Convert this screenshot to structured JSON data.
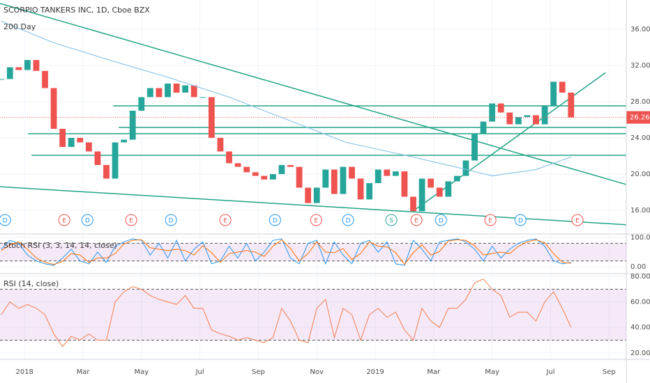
{
  "chart_data": [
    {
      "type": "candlestick",
      "title": "SCORPIO TANKERS INC, 1D, Cboe BZX",
      "xlim": [
        -0.84,
        20.59
      ],
      "ylim": [
        13.46,
        39.23
      ],
      "yticks": [
        {
          "value": 16,
          "label": "16.00"
        },
        {
          "value": 20,
          "label": "20.00"
        },
        {
          "value": 24,
          "label": "24.00"
        },
        {
          "value": 28,
          "label": "28.00"
        },
        {
          "value": 32,
          "label": "32.00"
        },
        {
          "value": 36,
          "label": "36.00"
        }
      ],
      "up_color": "#26a69a",
      "down_color": "#ef5350",
      "last_price_color": "#ef5350",
      "series": [
        {
          "x": [
            -0.8,
            -0.5,
            -0.2,
            0.1,
            0.4,
            0.7,
            1.0,
            1.3,
            1.6,
            1.9,
            2.2,
            2.5,
            2.8,
            3.1,
            3.4,
            3.7,
            4.0,
            4.3,
            4.6,
            4.9,
            5.2,
            5.5,
            5.8,
            6.1,
            6.4,
            6.7,
            7.0,
            7.3,
            7.6,
            7.9,
            8.2,
            8.5,
            8.8,
            9.1,
            9.4,
            9.7,
            10.0,
            10.3,
            10.6,
            10.9,
            11.2,
            11.5,
            11.8,
            12.1,
            12.4,
            12.7,
            13.0,
            13.3,
            13.6,
            13.9,
            14.2,
            14.5,
            14.8,
            15.1,
            15.4,
            15.7,
            16.0,
            16.3,
            16.6,
            16.9,
            17.2,
            17.5,
            17.8,
            18.1,
            18.4,
            18.7
          ],
          "values": [
            30.5,
            31.8,
            31.5,
            32.6,
            31.4,
            29.5,
            25,
            23,
            24,
            23.5,
            22.5,
            21,
            19.5,
            23.5,
            23.8,
            27,
            28.5,
            29.5,
            28.5,
            30,
            29,
            29.8,
            28.5,
            28.5,
            24,
            22.5,
            21.2,
            20.8,
            20.2,
            19.8,
            19.4,
            20,
            21,
            20.8,
            18.5,
            16.8,
            18.5,
            20.5,
            17.8,
            20.8,
            19.5,
            17.2,
            19,
            20.5,
            19.8,
            20.3,
            17.5,
            15.9,
            19.5,
            18.5,
            17.5,
            19.2,
            19.8,
            21.5,
            24.5,
            25.8,
            27.8,
            26.8,
            25.5,
            26.3,
            26.5,
            25.5,
            27.5,
            30.2,
            29,
            26.26
          ]
        },
        {
          "name": "200 Day",
          "color": "#8ec5e6",
          "x": [
            -0.8,
            1,
            3,
            5,
            7,
            9,
            11,
            13,
            15,
            16,
            17.5,
            18.7
          ],
          "values": [
            36.9,
            34.5,
            32.5,
            30.6,
            28.5,
            26.0,
            23.5,
            22.1,
            20.6,
            19.8,
            20.5,
            21.9
          ]
        }
      ],
      "drawing_color": "#20a386",
      "drawings": [
        {
          "x": [
            3.03,
            20.59
          ],
          "y": [
            27.54,
            27.54
          ]
        },
        {
          "x": [
            3.22,
            20.59
          ],
          "y": [
            25.15,
            25.15
          ]
        },
        {
          "x": [
            0.12,
            20.59
          ],
          "y": [
            24.46,
            24.46
          ]
        },
        {
          "x": [
            0.24,
            20.59
          ],
          "y": [
            22.08,
            22.08
          ]
        },
        {
          "x": [
            -0.84,
            20.59
          ],
          "y": [
            38.85,
            18.85
          ]
        },
        {
          "x": [
            -0.84,
            20.59
          ],
          "y": [
            18.6,
            14.4
          ]
        },
        {
          "x": [
            13.29,
            19.88
          ],
          "y": [
            15.9,
            31.2
          ]
        }
      ],
      "events": [
        {
          "x": -0.67,
          "label": "D",
          "color": "#2196f3"
        },
        {
          "x": 1.36,
          "label": "E",
          "color": "#ef5350"
        },
        {
          "x": 2.15,
          "label": "D",
          "color": "#2196f3"
        },
        {
          "x": 3.65,
          "label": "E",
          "color": "#ef5350"
        },
        {
          "x": 5.01,
          "label": "D",
          "color": "#2196f3"
        },
        {
          "x": 6.87,
          "label": "E",
          "color": "#ef5350"
        },
        {
          "x": 8.57,
          "label": "D",
          "color": "#2196f3"
        },
        {
          "x": 9.98,
          "label": "E",
          "color": "#ef5350"
        },
        {
          "x": 11.07,
          "label": "D",
          "color": "#2196f3"
        },
        {
          "x": 12.55,
          "label": "S",
          "color": "#26a69a"
        },
        {
          "x": 13.41,
          "label": "E",
          "color": "#ef5350"
        },
        {
          "x": 14.25,
          "label": "D",
          "color": "#2196f3"
        },
        {
          "x": 15.94,
          "label": "E",
          "color": "#ef5350"
        },
        {
          "x": 16.97,
          "label": "D",
          "color": "#2196f3"
        },
        {
          "x": 18.92,
          "label": "E",
          "color": "#ef5350"
        }
      ]
    },
    {
      "type": "line",
      "title": "Stoch RSI (3, 3, 14, 14, close)",
      "xlim": [
        -0.84,
        20.59
      ],
      "ylim": [
        -21,
        107
      ],
      "yticks": [
        {
          "value": 0,
          "label": "0.00"
        },
        {
          "value": 100,
          "label": "100.00"
        }
      ],
      "bands": [
        20,
        80
      ],
      "band_color": "#9c27b0",
      "x": [
        -0.8,
        -0.5,
        -0.2,
        0.1,
        0.4,
        0.7,
        1.0,
        1.3,
        1.6,
        1.9,
        2.2,
        2.5,
        2.8,
        3.1,
        3.4,
        3.7,
        4.0,
        4.3,
        4.6,
        4.9,
        5.2,
        5.5,
        5.8,
        6.1,
        6.4,
        6.7,
        7.0,
        7.3,
        7.6,
        7.9,
        8.2,
        8.5,
        8.8,
        9.1,
        9.4,
        9.7,
        10.0,
        10.3,
        10.6,
        10.9,
        11.2,
        11.5,
        11.8,
        12.1,
        12.4,
        12.7,
        13.0,
        13.3,
        13.6,
        13.9,
        14.2,
        14.5,
        14.8,
        15.1,
        15.4,
        15.7,
        16.0,
        16.3,
        16.6,
        16.9,
        17.2,
        17.5,
        17.8,
        18.1,
        18.4,
        18.7
      ],
      "series": [
        {
          "color": "#2196f3",
          "values": [
            60,
            90,
            80,
            40,
            20,
            10,
            5,
            30,
            60,
            20,
            10,
            50,
            15,
            70,
            85,
            95,
            90,
            40,
            80,
            30,
            90,
            20,
            60,
            85,
            10,
            20,
            70,
            30,
            80,
            20,
            50,
            90,
            95,
            30,
            10,
            80,
            90,
            10,
            85,
            40,
            10,
            80,
            90,
            50,
            85,
            10,
            5,
            90,
            60,
            20,
            85,
            90,
            95,
            85,
            60,
            20,
            70,
            30,
            60,
            80,
            90,
            95,
            70,
            20,
            10,
            15
          ]
        },
        {
          "color": "#ff6d00",
          "values": [
            55,
            75,
            85,
            60,
            30,
            15,
            8,
            18,
            45,
            40,
            15,
            30,
            30,
            45,
            78,
            90,
            92,
            65,
            60,
            55,
            60,
            55,
            40,
            72,
            48,
            15,
            45,
            50,
            55,
            50,
            35,
            70,
            92,
            62,
            20,
            45,
            85,
            50,
            48,
            62,
            25,
            45,
            85,
            70,
            68,
            48,
            8,
            48,
            75,
            40,
            52,
            88,
            92,
            90,
            72,
            40,
            45,
            50,
            45,
            70,
            85,
            92,
            82,
            45,
            15,
            12
          ]
        }
      ]
    },
    {
      "type": "line",
      "title": "RSI (14, close)",
      "xlim": [
        -0.84,
        20.59
      ],
      "ylim": [
        15.5,
        82.2
      ],
      "yticks": [
        {
          "value": 20,
          "label": "20.00"
        },
        {
          "value": 40,
          "label": "40.00"
        },
        {
          "value": 60,
          "label": "60.00"
        },
        {
          "value": 80,
          "label": "80.00"
        }
      ],
      "bands": [
        30,
        70
      ],
      "band_color": "#9c27b0",
      "xticks": [
        {
          "value": 0,
          "label": "2018"
        },
        {
          "value": 2,
          "label": "Mar"
        },
        {
          "value": 4,
          "label": "May"
        },
        {
          "value": 6,
          "label": "Jul"
        },
        {
          "value": 8,
          "label": "Sep"
        },
        {
          "value": 10,
          "label": "Nov"
        },
        {
          "value": 12,
          "label": "2019"
        },
        {
          "value": 14,
          "label": "Mar"
        },
        {
          "value": 16,
          "label": "May"
        },
        {
          "value": 18,
          "label": "Jul"
        },
        {
          "value": 20,
          "label": "Sep"
        }
      ],
      "x": [
        -0.8,
        -0.5,
        -0.2,
        0.1,
        0.4,
        0.7,
        1.0,
        1.3,
        1.6,
        1.9,
        2.2,
        2.5,
        2.8,
        3.1,
        3.4,
        3.7,
        4.0,
        4.3,
        4.6,
        4.9,
        5.2,
        5.5,
        5.8,
        6.1,
        6.4,
        6.7,
        7.0,
        7.3,
        7.6,
        7.9,
        8.2,
        8.5,
        8.8,
        9.1,
        9.4,
        9.7,
        10.0,
        10.3,
        10.6,
        10.9,
        11.2,
        11.5,
        11.8,
        12.1,
        12.4,
        12.7,
        13.0,
        13.3,
        13.6,
        13.9,
        14.2,
        14.5,
        14.8,
        15.1,
        15.4,
        15.7,
        16.0,
        16.3,
        16.6,
        16.9,
        17.2,
        17.5,
        17.8,
        18.1,
        18.4,
        18.7
      ],
      "series": [
        {
          "color": "#f57c4a",
          "values": [
            50,
            60,
            55,
            58,
            55,
            50,
            35,
            25,
            33,
            30,
            35,
            30,
            30,
            60,
            68,
            72,
            70,
            65,
            62,
            60,
            58,
            65,
            55,
            55,
            38,
            35,
            33,
            30,
            32,
            30,
            28,
            32,
            55,
            45,
            30,
            28,
            55,
            62,
            32,
            55,
            50,
            30,
            50,
            55,
            48,
            52,
            38,
            30,
            55,
            45,
            40,
            55,
            55,
            62,
            75,
            78,
            70,
            65,
            48,
            52,
            52,
            45,
            60,
            68,
            55,
            40
          ]
        }
      ]
    }
  ]
}
